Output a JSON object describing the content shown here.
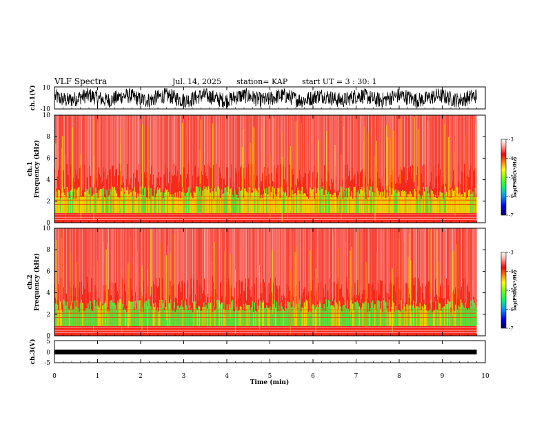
{
  "header": {
    "title": "VLF Spectra",
    "date": "Jul. 14, 2025",
    "station": "station= KAP",
    "start": "start  UT =   3 : 30: 1"
  },
  "chart_data": [
    {
      "type": "line",
      "name": "ch1-waveform",
      "ylabel": "ch.1(V)",
      "ylim": [
        -10,
        10
      ],
      "yticks": [
        "10",
        "-10"
      ],
      "xlim": [
        0,
        10
      ],
      "trace_extent_min": [
        0,
        9.8
      ]
    },
    {
      "type": "heatmap",
      "name": "ch1-spectrogram",
      "ylabel_line1": "ch.1",
      "ylabel_line2": "Frequency  (kHz)",
      "ylim": [
        0,
        10
      ],
      "yticks": [
        "0",
        "2",
        "4",
        "6",
        "8",
        "10"
      ],
      "xlim": [
        0,
        10
      ],
      "data_extent_min": [
        0,
        9.8
      ],
      "colorbar": {
        "label": "log(PSD)(V²/Hz)",
        "range": [
          -7,
          -3
        ],
        "ticks": [
          "-3",
          "-4",
          "-5",
          "-6",
          "-7"
        ]
      }
    },
    {
      "type": "heatmap",
      "name": "ch2-spectrogram",
      "ylabel_line1": "ch.2",
      "ylabel_line2": "Frequency  (kHz)",
      "ylim": [
        0,
        10
      ],
      "yticks": [
        "0",
        "2",
        "4",
        "6",
        "8",
        "10"
      ],
      "xlim": [
        0,
        10
      ],
      "data_extent_min": [
        0,
        9.8
      ],
      "colorbar": {
        "label": "log(PSD)(V²/Hz)",
        "range": [
          -7,
          -3
        ],
        "ticks": [
          "-3",
          "-4",
          "-5",
          "-6",
          "-7"
        ]
      }
    },
    {
      "type": "line",
      "name": "ch3-waveform",
      "ylabel": "ch.3(V)",
      "ylim": [
        -5,
        5
      ],
      "yticks": [
        "5",
        "0",
        "-5"
      ],
      "level": 0,
      "xlim": [
        0,
        10
      ],
      "xlabel": "Time  (min)",
      "xticks": [
        "0",
        "1",
        "2",
        "3",
        "4",
        "5",
        "6",
        "7",
        "8",
        "9",
        "10"
      ]
    }
  ],
  "colors": {
    "frame": "#000000",
    "colormap": [
      "#000060",
      "#0000ff",
      "#00a0ff",
      "#00ff60",
      "#80ff00",
      "#ffff00",
      "#ff8000",
      "#ff0000",
      "#ffb0b0",
      "#ffffff"
    ]
  }
}
